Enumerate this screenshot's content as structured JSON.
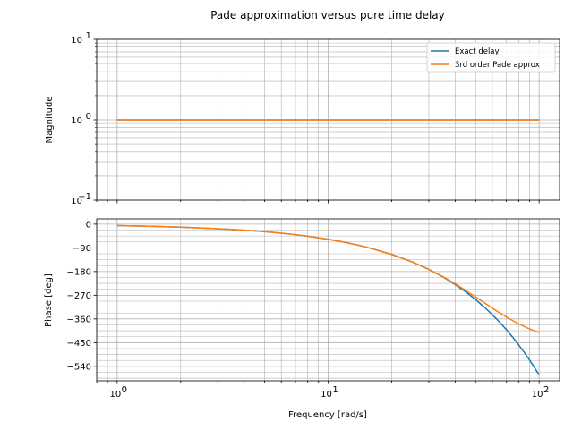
{
  "chart_data": [
    {
      "type": "line",
      "title": "Pade approximation versus pure time delay",
      "ylabel": "Magnitude",
      "xscale": "log",
      "yscale": "log",
      "xlim": [
        0.8,
        125
      ],
      "ylim": [
        0.1,
        10
      ],
      "yticks": [
        {
          "value": 0.1,
          "base": "10",
          "exp": "−1"
        },
        {
          "value": 1,
          "base": "10",
          "exp": "0"
        },
        {
          "value": 10,
          "base": "10",
          "exp": "1"
        }
      ],
      "grid": true,
      "legend": {
        "position": "top-right",
        "entries": [
          "Exact delay",
          "3rd order Pade approx"
        ]
      },
      "series": [
        {
          "name": "Exact delay",
          "color": "#1f77b4",
          "x": [
            1,
            100
          ],
          "y": [
            1,
            1
          ]
        },
        {
          "name": "3rd order Pade approx",
          "color": "#ff7f0e",
          "x": [
            1,
            100
          ],
          "y": [
            1,
            1
          ]
        }
      ]
    },
    {
      "type": "line",
      "xlabel": "Frequency [rad/s]",
      "ylabel": "Phase [deg]",
      "xscale": "log",
      "xlim": [
        0.8,
        125
      ],
      "ylim": [
        -595,
        20
      ],
      "xticks": [
        {
          "value": 1,
          "base": "10",
          "exp": "0"
        },
        {
          "value": 10,
          "base": "10",
          "exp": "1"
        },
        {
          "value": 100,
          "base": "10",
          "exp": "2"
        }
      ],
      "yticks": [
        {
          "value": 0,
          "label": "0"
        },
        {
          "value": -90,
          "label": "−90"
        },
        {
          "value": -180,
          "label": "−180"
        },
        {
          "value": -270,
          "label": "−270"
        },
        {
          "value": -360,
          "label": "−360"
        },
        {
          "value": -450,
          "label": "−450"
        },
        {
          "value": -540,
          "label": "−540"
        }
      ],
      "grid": true,
      "series": [
        {
          "name": "Exact delay",
          "color": "#1f77b4",
          "x": [
            1,
            1.5,
            2,
            3,
            4,
            5,
            6,
            7,
            8,
            10,
            12,
            15,
            20,
            25,
            30,
            35,
            40,
            45,
            50,
            55,
            60,
            65,
            70,
            75,
            80,
            85,
            90,
            95,
            100
          ],
          "y": [
            -5.7,
            -8.6,
            -11.5,
            -17.2,
            -22.9,
            -28.6,
            -34.4,
            -40.1,
            -45.8,
            -57.3,
            -68.8,
            -85.9,
            -114.6,
            -143.2,
            -171.9,
            -200.5,
            -229.2,
            -257.8,
            -286.5,
            -315.1,
            -343.8,
            -372.4,
            -401.1,
            -429.7,
            -458.4,
            -487.0,
            -515.7,
            -544.3,
            -573.0
          ]
        },
        {
          "name": "3rd order Pade approx",
          "color": "#ff7f0e",
          "x": [
            1,
            1.5,
            2,
            3,
            4,
            5,
            6,
            7,
            8,
            10,
            12,
            15,
            20,
            25,
            30,
            35,
            40,
            45,
            50,
            55,
            60,
            65,
            70,
            75,
            80,
            85,
            90,
            95,
            100
          ],
          "y": [
            -5.7,
            -8.6,
            -11.5,
            -17.2,
            -22.9,
            -28.6,
            -34.4,
            -40.1,
            -45.8,
            -57.3,
            -68.8,
            -85.9,
            -114.6,
            -143.2,
            -171.5,
            -199.4,
            -226.4,
            -252.2,
            -276.4,
            -298.6,
            -318.8,
            -336.8,
            -352.7,
            -366.5,
            -378.5,
            -388.8,
            -397.7,
            -405.3,
            -411.7
          ]
        }
      ]
    }
  ]
}
